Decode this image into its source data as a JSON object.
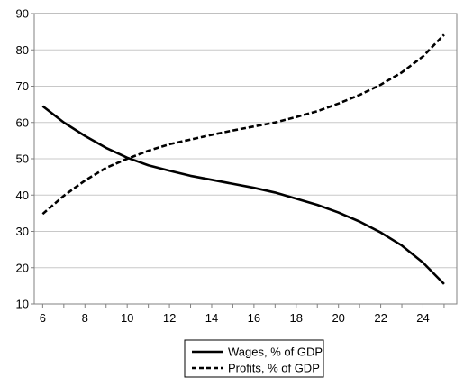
{
  "chart_data": {
    "type": "line",
    "title": "",
    "xlabel": "",
    "ylabel": "",
    "xlim": [
      5.6,
      25.6
    ],
    "ylim": [
      10,
      90
    ],
    "x_ticks": [
      6,
      8,
      10,
      12,
      14,
      16,
      18,
      20,
      22,
      24
    ],
    "y_ticks": [
      10,
      20,
      30,
      40,
      50,
      60,
      70,
      80,
      90
    ],
    "grid": "horizontal",
    "legend_position": "bottom-center",
    "x": [
      6,
      7,
      8,
      9,
      10,
      11,
      12,
      13,
      14,
      15,
      16,
      17,
      18,
      19,
      20,
      21,
      22,
      23,
      24,
      25
    ],
    "series": [
      {
        "name": "Wages, % of GDP",
        "style": "solid",
        "color": "#000000",
        "values": [
          64.5,
          60.0,
          56.3,
          53.0,
          50.3,
          48.2,
          46.7,
          45.3,
          44.2,
          43.1,
          42.0,
          40.7,
          39.0,
          37.3,
          35.2,
          32.7,
          29.7,
          26.1,
          21.4,
          15.5
        ]
      },
      {
        "name": "Profits, % of GDP",
        "style": "dashed",
        "color": "#000000",
        "values": [
          34.8,
          39.8,
          44.0,
          47.5,
          50.0,
          52.2,
          54.0,
          55.3,
          56.6,
          57.8,
          58.9,
          60.0,
          61.5,
          63.1,
          65.2,
          67.6,
          70.4,
          73.8,
          78.2,
          84.2
        ]
      }
    ]
  }
}
